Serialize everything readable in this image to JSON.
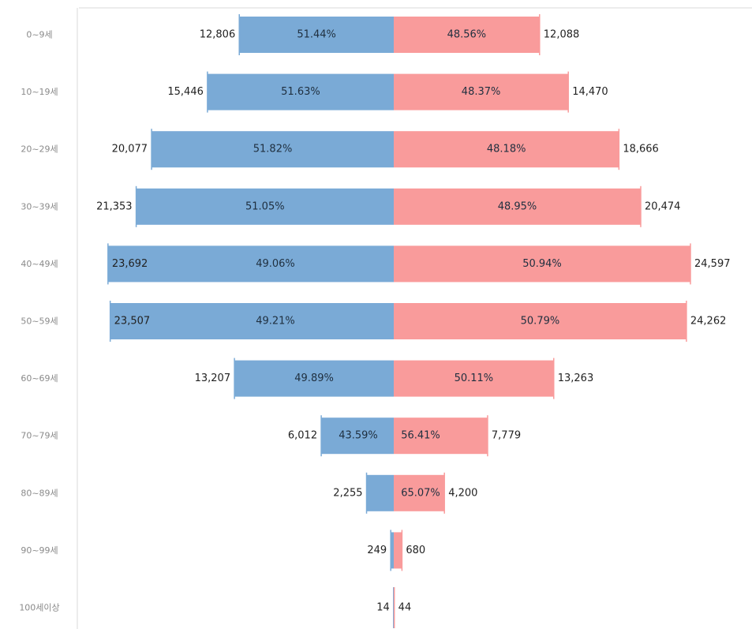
{
  "chart_data": {
    "type": "bar",
    "orientation": "horizontal-diverging",
    "categories": [
      "0~9세",
      "10~19세",
      "20~29세",
      "30~39세",
      "40~49세",
      "50~59세",
      "60~69세",
      "70~79세",
      "80~89세",
      "90~99세",
      "100세이상"
    ],
    "series": [
      {
        "color": "#7aaad6",
        "values": [
          12806,
          15446,
          20077,
          21353,
          23692,
          23507,
          13207,
          6012,
          2255,
          249,
          14
        ],
        "value_labels": [
          "12,806",
          "15,446",
          "20,077",
          "21,353",
          "23,692",
          "23,507",
          "13,207",
          "6,012",
          "2,255",
          "249",
          "14"
        ],
        "percent_labels": [
          "51.44%",
          "51.63%",
          "51.82%",
          "51.05%",
          "49.06%",
          "49.21%",
          "49.89%",
          "43.59%",
          "",
          "",
          ""
        ]
      },
      {
        "color": "#f99b9b",
        "values": [
          12088,
          14470,
          18666,
          20474,
          24597,
          24262,
          13263,
          7779,
          4200,
          680,
          44
        ],
        "value_labels": [
          "12,088",
          "14,470",
          "18,666",
          "20,474",
          "24,597",
          "24,262",
          "13,263",
          "7,779",
          "4,200",
          "680",
          "44"
        ],
        "percent_labels": [
          "48.56%",
          "48.37%",
          "48.18%",
          "48.95%",
          "50.94%",
          "50.79%",
          "50.11%",
          "56.41%",
          "65.07%",
          "",
          ""
        ]
      }
    ],
    "xlim": [
      -24597,
      24597
    ],
    "grid": false,
    "legend": "none"
  }
}
